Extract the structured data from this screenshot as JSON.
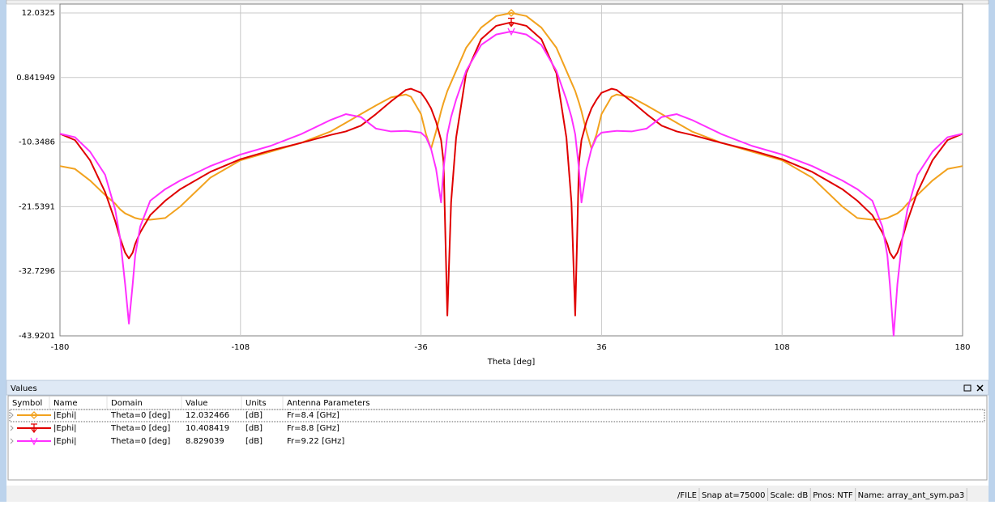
{
  "chart_data": {
    "type": "line",
    "xlabel": "Theta [deg]",
    "x": [
      -180,
      -174,
      -168,
      -162,
      -158,
      -156,
      -154,
      -152.5,
      -151,
      -150,
      -148,
      -144,
      -138,
      -132,
      -120,
      -108,
      -96,
      -84,
      -72,
      -66,
      -60,
      -54,
      -48,
      -42,
      -40,
      -36,
      -34,
      -32,
      -30,
      -28,
      -27,
      -25.5,
      -24,
      -22,
      -18,
      -12,
      -6,
      0,
      6,
      12,
      18,
      22,
      24,
      25.5,
      27,
      28,
      30,
      32,
      34,
      36,
      40,
      42,
      48,
      54,
      60,
      66,
      72,
      84,
      96,
      108,
      120,
      132,
      138,
      144,
      148,
      150,
      151,
      152.5,
      154,
      156,
      158,
      162,
      168,
      174,
      180
    ],
    "series": [
      {
        "name": "|Ephi|",
        "color": "#f2a21e",
        "values": [
          -14.5,
          -15,
          -17,
          -19.5,
          -21,
          -22,
          -22.7,
          -23,
          -23.3,
          -23.5,
          -23.7,
          -23.8,
          -23.5,
          -21.5,
          -16.5,
          -13.5,
          -12,
          -10.5,
          -8.5,
          -7,
          -5.5,
          -4,
          -2.6,
          -2.1,
          -2.5,
          -5.5,
          -9,
          -11.5,
          -8.5,
          -5,
          -3.5,
          -1.5,
          0,
          2,
          6,
          9.5,
          11.5,
          12.03,
          11.5,
          9.5,
          6,
          2,
          0,
          -1.5,
          -3.5,
          -5,
          -8.5,
          -11.5,
          -9,
          -5.5,
          -2.5,
          -2.1,
          -2.6,
          -4,
          -5.5,
          -7,
          -8.5,
          -10.5,
          -12,
          -13.5,
          -16.5,
          -21.5,
          -23.5,
          -23.8,
          -23.7,
          -23.5,
          -23.3,
          -23,
          -22.7,
          -22,
          -21,
          -19.5,
          -17,
          -15,
          -14.5
        ]
      },
      {
        "name": "|Ephi|",
        "color": "#e00000",
        "values": [
          -8.9,
          -10,
          -13.5,
          -19,
          -24,
          -27,
          -29.5,
          -30.5,
          -29.5,
          -28,
          -26,
          -23,
          -20.5,
          -18.5,
          -15.5,
          -13.3,
          -11.8,
          -10.5,
          -9.1,
          -8.5,
          -7.5,
          -5.5,
          -3.3,
          -1.3,
          -1.1,
          -1.8,
          -3,
          -4.5,
          -6.8,
          -10,
          -13.8,
          -40.4,
          -20.8,
          -9.6,
          1.6,
          7.5,
          9.8,
          10.41,
          9.8,
          7.5,
          1.6,
          -9.6,
          -20.8,
          -40.4,
          -13.8,
          -10,
          -6.8,
          -4.5,
          -3,
          -1.8,
          -1.1,
          -1.3,
          -3.3,
          -5.5,
          -7.5,
          -8.5,
          -9.1,
          -10.5,
          -11.8,
          -13.3,
          -15.5,
          -18.5,
          -20.5,
          -23,
          -26,
          -28,
          -29.5,
          -30.5,
          -29.5,
          -27,
          -24,
          -19,
          -13.5,
          -10,
          -8.9
        ]
      },
      {
        "name": "|Ephi|",
        "color": "#ff30ff",
        "values": [
          -8.9,
          -9.5,
          -12,
          -16,
          -22,
          -27,
          -35,
          -41.8,
          -35,
          -30,
          -25,
          -20.5,
          -18.5,
          -17,
          -14.5,
          -12.5,
          -11,
          -9,
          -6.5,
          -5.5,
          -6,
          -8,
          -8.5,
          -8.4,
          -8.5,
          -8.7,
          -9.5,
          -11.5,
          -15,
          -20.8,
          -15,
          -9,
          -6,
          -3,
          2,
          6.5,
          8.3,
          8.83,
          8.3,
          6.5,
          2,
          -3,
          -6,
          -9,
          -15,
          -20.8,
          -15,
          -11.5,
          -9.5,
          -8.7,
          -8.5,
          -8.4,
          -8.5,
          -8,
          -6,
          -5.5,
          -6.5,
          -9,
          -11,
          -12.5,
          -14.5,
          -17,
          -18.5,
          -20.5,
          -25,
          -30,
          -35,
          -43.9,
          -35,
          -27,
          -22,
          -16,
          -12,
          -9.5,
          -8.9
        ]
      }
    ],
    "xlim": [
      -180,
      180
    ],
    "xticks": [
      -180,
      -108,
      -36,
      36,
      108,
      180
    ],
    "ylim": [
      -43.9201,
      12.0325
    ],
    "yticks": [
      -43.9201,
      -32.7296,
      -21.5391,
      -10.3486,
      0.841949,
      12.0325
    ],
    "grid": true
  },
  "values_panel": {
    "title": "Values",
    "columns": [
      "Symbol",
      "Name",
      "Domain",
      "Value",
      "Units",
      "Antenna Parameters"
    ],
    "rows": [
      {
        "domain": "Theta=0 [deg]",
        "value": 12.032466,
        "units": "[dB]",
        "params": "Fr=8.4 [GHz]"
      },
      {
        "domain": "Theta=0 [deg]",
        "value": 10.408419,
        "units": "[dB]",
        "params": "Fr=8.8 [GHz]"
      },
      {
        "domain": "Theta=0 [deg]",
        "value": 8.829039,
        "units": "[dB]",
        "params": "Fr=9.22 [GHz]"
      }
    ]
  },
  "status_bar": [
    "/FILE",
    "Snap at=75000",
    "Scale: dB",
    "Pnos: NTF",
    "Name: array_ant_sym.pa3"
  ]
}
